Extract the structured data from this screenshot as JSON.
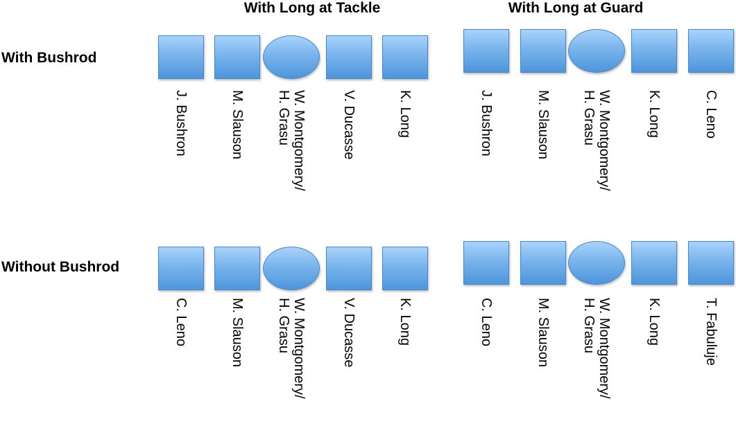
{
  "column_headers": [
    "With Long at Tackle",
    "With Long at Guard"
  ],
  "row_headers": [
    "With Bushrod",
    "Without Bushrod"
  ],
  "shape_color": "#5b9bd5",
  "grids": [
    {
      "shapes": [
        "square",
        "square",
        "oval",
        "square",
        "square"
      ],
      "labels": [
        "J. Bushron",
        "M. Slauson",
        "W. Montgomery/\nH. Grasu",
        "V. Ducasse",
        "K. Long"
      ]
    },
    {
      "shapes": [
        "square",
        "square",
        "oval",
        "square",
        "square"
      ],
      "labels": [
        "J. Bushron",
        "M. Slauson",
        "W. Montgomery/\nH. Grasu",
        "K. Long",
        "C. Leno"
      ]
    },
    {
      "shapes": [
        "square",
        "square",
        "oval",
        "square",
        "square"
      ],
      "labels": [
        "C. Leno",
        "M. Slauson",
        "W. Montgomery/\nH. Grasu",
        "V. Ducasse",
        "K. Long"
      ]
    },
    {
      "shapes": [
        "square",
        "square",
        "oval",
        "square",
        "square"
      ],
      "labels": [
        "C. Leno",
        "M. Slauson",
        "W. Montgomery/\nH. Grasu",
        "K. Long",
        "T. Fabuluje"
      ]
    }
  ]
}
